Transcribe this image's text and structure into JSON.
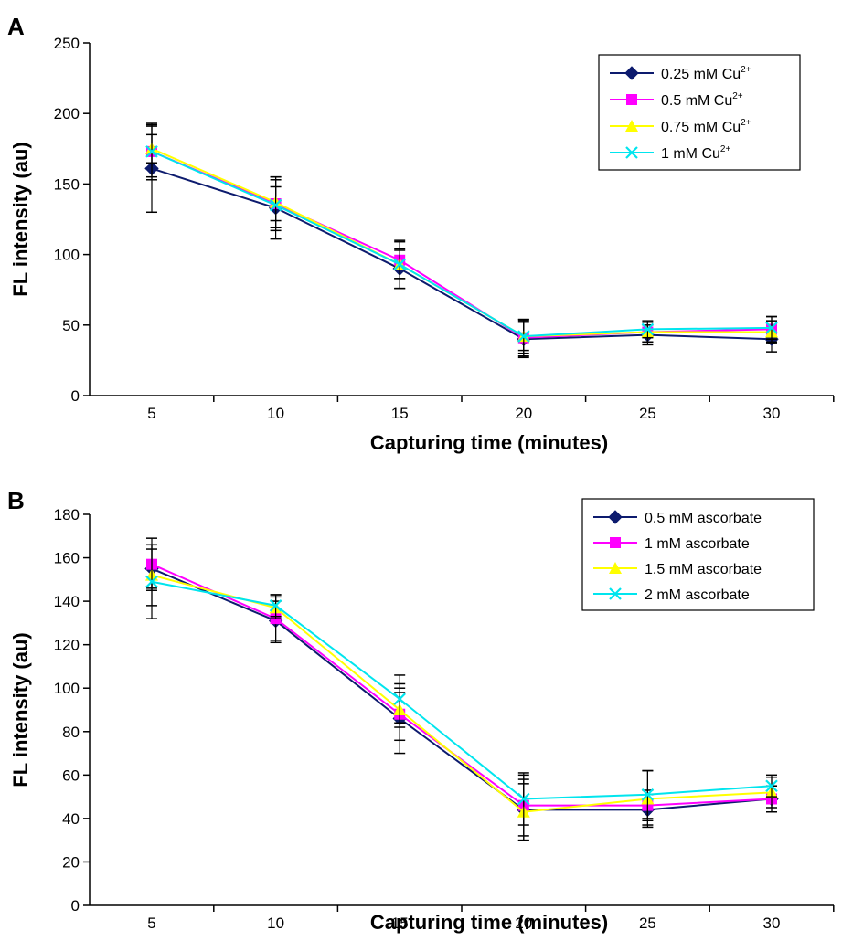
{
  "chart_data": [
    {
      "panel": "A",
      "type": "line",
      "xlabel": "Capturing time (minutes)",
      "ylabel": "FL intensity (au)",
      "categories": [
        "5",
        "10",
        "15",
        "20",
        "25",
        "30"
      ],
      "x": [
        5,
        10,
        15,
        20,
        25,
        30
      ],
      "ylim": [
        0,
        250
      ],
      "yticks": [
        0,
        50,
        100,
        150,
        200,
        250
      ],
      "legend_position": "top-right",
      "series": [
        {
          "name": "0.25 mM Cu",
          "name_sup": "2+",
          "color": "#0d1b6e",
          "marker": "diamond",
          "values": [
            161,
            133,
            90,
            40,
            43,
            40
          ],
          "errors": [
            31,
            22,
            14,
            13,
            7,
            9
          ]
        },
        {
          "name": "0.5 mM Cu",
          "name_sup": "2+",
          "color": "#ff00ff",
          "marker": "square",
          "values": [
            173,
            136,
            96,
            41,
            45,
            47
          ],
          "errors": [
            20,
            12,
            13,
            13,
            7,
            9
          ]
        },
        {
          "name": "0.75 mM Cu",
          "name_sup": "2+",
          "color": "#ffff00",
          "marker": "triangle",
          "values": [
            175,
            137,
            93,
            42,
            45,
            45
          ],
          "errors": [
            10,
            18,
            10,
            12,
            7,
            8
          ]
        },
        {
          "name": "1 mM Cu",
          "name_sup": "2+",
          "color": "#00e5ee",
          "marker": "x",
          "values": [
            173,
            135,
            93,
            42,
            47,
            48
          ],
          "errors": [
            18,
            18,
            17,
            10,
            6,
            8
          ]
        }
      ]
    },
    {
      "panel": "B",
      "type": "line",
      "xlabel": "Capturing time (minutes)",
      "ylabel": "FL intensity (au)",
      "categories": [
        "5",
        "10",
        "15",
        "20",
        "25",
        "30"
      ],
      "x": [
        5,
        10,
        15,
        20,
        25,
        30
      ],
      "ylim": [
        0,
        180
      ],
      "yticks": [
        0,
        20,
        40,
        60,
        80,
        100,
        120,
        140,
        160,
        180
      ],
      "legend_position": "top-right",
      "series": [
        {
          "name": "0.5 mM ascorbate",
          "color": "#0d1b6e",
          "marker": "diamond",
          "values": [
            155,
            131,
            86,
            44,
            44,
            49
          ],
          "errors": [
            9,
            9,
            16,
            14,
            7,
            6
          ]
        },
        {
          "name": "1 mM ascorbate",
          "color": "#ff00ff",
          "marker": "square",
          "values": [
            157,
            132,
            88,
            46,
            46,
            49
          ],
          "errors": [
            12,
            11,
            12,
            14,
            7,
            6
          ]
        },
        {
          "name": "1.5 mM ascorbate",
          "color": "#ffff00",
          "marker": "triangle",
          "values": [
            152,
            137,
            90,
            43,
            49,
            52
          ],
          "errors": [
            14,
            5,
            8,
            13,
            13,
            7
          ]
        },
        {
          "name": "2 mM ascorbate",
          "color": "#00e5ee",
          "marker": "x",
          "values": [
            149,
            138,
            95,
            49,
            51,
            55
          ],
          "errors": [
            17,
            5,
            11,
            12,
            11,
            5
          ]
        }
      ]
    }
  ]
}
